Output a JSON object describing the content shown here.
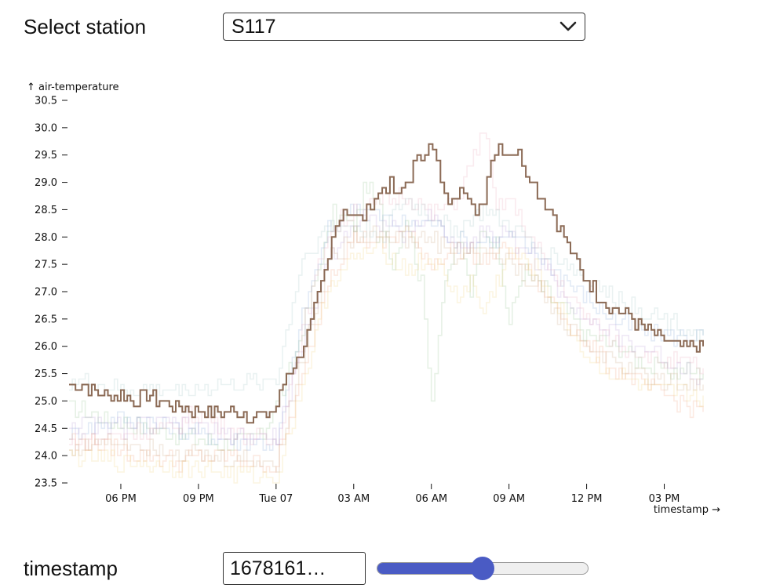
{
  "controls": {
    "station_label": "Select station",
    "station_value": "S117",
    "station_chevron_icon": "chevron-down-icon",
    "timestamp_label": "timestamp",
    "timestamp_value": "1678161…",
    "timestamp_slider_fraction": 0.5
  },
  "chart_data": {
    "type": "line",
    "title": "",
    "ylabel": "↑ air-temperature",
    "xlabel": "timestamp →",
    "ylim": [
      23.5,
      30.5
    ],
    "yticks": [
      23.5,
      24.0,
      24.5,
      25.0,
      25.5,
      26.0,
      26.5,
      27.0,
      27.5,
      28.0,
      28.5,
      29.0,
      29.5,
      30.0,
      30.5
    ],
    "xlim_hours": [
      16,
      40.5
    ],
    "xticks": [
      {
        "hour": 18,
        "label": "06 PM"
      },
      {
        "hour": 21,
        "label": "09 PM"
      },
      {
        "hour": 24,
        "label": "Tue 07"
      },
      {
        "hour": 27,
        "label": "03 AM"
      },
      {
        "hour": 30,
        "label": "06 AM"
      },
      {
        "hour": 33,
        "label": "09 AM"
      },
      {
        "hour": 36,
        "label": "12 PM"
      },
      {
        "hour": 39,
        "label": "03 PM"
      }
    ],
    "grid": false,
    "background_series_opacity": 0.22,
    "highlighted_series": {
      "name": "",
      "color": "#8b6a55",
      "points": [
        [
          16.0,
          25.3
        ],
        [
          16.5,
          25.3
        ],
        [
          17.0,
          25.2
        ],
        [
          17.5,
          25.1
        ],
        [
          18.0,
          25.1
        ],
        [
          18.5,
          25.0
        ],
        [
          19.0,
          25.1
        ],
        [
          19.5,
          25.0
        ],
        [
          20.0,
          24.9
        ],
        [
          20.5,
          24.85
        ],
        [
          21.0,
          24.8
        ],
        [
          21.5,
          24.8
        ],
        [
          22.0,
          24.8
        ],
        [
          22.5,
          24.8
        ],
        [
          23.0,
          24.75
        ],
        [
          23.5,
          24.7
        ],
        [
          24.0,
          24.9
        ],
        [
          24.4,
          25.5
        ],
        [
          24.8,
          25.7
        ],
        [
          25.2,
          26.2
        ],
        [
          25.6,
          26.9
        ],
        [
          26.0,
          27.6
        ],
        [
          26.3,
          28.3
        ],
        [
          26.6,
          28.5
        ],
        [
          26.9,
          28.4
        ],
        [
          27.2,
          28.3
        ],
        [
          27.5,
          28.5
        ],
        [
          27.8,
          28.7
        ],
        [
          28.1,
          28.9
        ],
        [
          28.4,
          29.0
        ],
        [
          28.7,
          28.7
        ],
        [
          29.0,
          29.0
        ],
        [
          29.3,
          29.3
        ],
        [
          29.6,
          29.5
        ],
        [
          29.9,
          29.8
        ],
        [
          30.2,
          29.3
        ],
        [
          30.5,
          28.7
        ],
        [
          30.8,
          28.6
        ],
        [
          31.1,
          29.0
        ],
        [
          31.4,
          28.8
        ],
        [
          31.7,
          28.3
        ],
        [
          32.0,
          28.7
        ],
        [
          32.3,
          29.5
        ],
        [
          32.6,
          29.7
        ],
        [
          32.9,
          29.5
        ],
        [
          33.2,
          29.6
        ],
        [
          33.5,
          29.4
        ],
        [
          33.8,
          29.1
        ],
        [
          34.1,
          28.8
        ],
        [
          34.4,
          28.6
        ],
        [
          34.7,
          28.4
        ],
        [
          35.0,
          28.1
        ],
        [
          35.5,
          27.6
        ],
        [
          36.0,
          27.2
        ],
        [
          36.5,
          26.9
        ],
        [
          37.0,
          26.7
        ],
        [
          37.5,
          26.6
        ],
        [
          38.0,
          26.4
        ],
        [
          38.5,
          26.2
        ],
        [
          39.0,
          26.1
        ],
        [
          39.5,
          26.0
        ],
        [
          40.5,
          26.0
        ]
      ]
    },
    "series": [
      {
        "color": "#8fbf8a",
        "points": [
          [
            16,
            24.9
          ],
          [
            18,
            24.6
          ],
          [
            20,
            24.4
          ],
          [
            22,
            24.2
          ],
          [
            23.5,
            24.4
          ],
          [
            24.5,
            25.5
          ],
          [
            25.5,
            27.2
          ],
          [
            26.2,
            28.4
          ],
          [
            27,
            28.2
          ],
          [
            27.5,
            29.0
          ],
          [
            28,
            28.5
          ],
          [
            28.5,
            27.5
          ],
          [
            29,
            28.4
          ],
          [
            29.6,
            27.1
          ],
          [
            30,
            25.1
          ],
          [
            30.4,
            26.8
          ],
          [
            31,
            28.0
          ],
          [
            31.5,
            27.0
          ],
          [
            32,
            28.3
          ],
          [
            32.5,
            27.8
          ],
          [
            33,
            26.4
          ],
          [
            33.5,
            27.4
          ],
          [
            34,
            27.2
          ],
          [
            35,
            26.7
          ],
          [
            36,
            26.2
          ],
          [
            37.5,
            25.9
          ],
          [
            38.5,
            25.6
          ],
          [
            40.5,
            25.5
          ]
        ]
      },
      {
        "color": "#7fa3d4",
        "points": [
          [
            16,
            24.4
          ],
          [
            18,
            24.7
          ],
          [
            20,
            24.5
          ],
          [
            22,
            24.3
          ],
          [
            24,
            24.2
          ],
          [
            25,
            26.6
          ],
          [
            26,
            28.1
          ],
          [
            27,
            28.6
          ],
          [
            28,
            28.4
          ],
          [
            29,
            28.2
          ],
          [
            30,
            28.3
          ],
          [
            31,
            27.9
          ],
          [
            32,
            27.9
          ],
          [
            33,
            28.0
          ],
          [
            34,
            27.7
          ],
          [
            35,
            27.3
          ],
          [
            36,
            26.9
          ],
          [
            37,
            26.5
          ],
          [
            38.5,
            26.2
          ],
          [
            40.5,
            26.2
          ]
        ]
      },
      {
        "color": "#f1a07a",
        "points": [
          [
            16,
            24.3
          ],
          [
            18,
            24.1
          ],
          [
            20,
            23.9
          ],
          [
            22,
            24.0
          ],
          [
            24,
            23.8
          ],
          [
            25,
            25.4
          ],
          [
            26,
            27.3
          ],
          [
            27,
            28.0
          ],
          [
            28,
            27.9
          ],
          [
            29,
            28.1
          ],
          [
            30,
            27.5
          ],
          [
            31,
            27.8
          ],
          [
            32,
            27.6
          ],
          [
            33,
            27.8
          ],
          [
            34,
            27.2
          ],
          [
            35,
            26.6
          ],
          [
            36,
            26.0
          ],
          [
            37,
            25.6
          ],
          [
            38.5,
            25.2
          ],
          [
            40.5,
            24.8
          ]
        ]
      },
      {
        "color": "#e8a4b8",
        "points": [
          [
            16,
            24.2
          ],
          [
            18,
            24.4
          ],
          [
            20,
            24.5
          ],
          [
            21,
            24.8
          ],
          [
            22,
            24.5
          ],
          [
            24,
            24.2
          ],
          [
            25,
            26.3
          ],
          [
            26,
            28.1
          ],
          [
            27,
            28.5
          ],
          [
            28,
            28.6
          ],
          [
            29,
            28.8
          ],
          [
            30,
            28.4
          ],
          [
            31,
            28.7
          ],
          [
            32,
            30.0
          ],
          [
            32.5,
            28.5
          ],
          [
            33,
            28.7
          ],
          [
            34,
            27.8
          ],
          [
            35,
            27.1
          ],
          [
            36,
            26.5
          ],
          [
            37,
            26.1
          ],
          [
            38.5,
            25.8
          ],
          [
            40.5,
            25.6
          ]
        ]
      },
      {
        "color": "#f1d27a",
        "points": [
          [
            16,
            24.0
          ],
          [
            18,
            23.9
          ],
          [
            20,
            23.8
          ],
          [
            22,
            23.7
          ],
          [
            24,
            23.6
          ],
          [
            25,
            25.3
          ],
          [
            26,
            27.1
          ],
          [
            27,
            27.6
          ],
          [
            28,
            27.8
          ],
          [
            29,
            27.4
          ],
          [
            30,
            27.6
          ],
          [
            31,
            26.9
          ],
          [
            31.5,
            27.2
          ],
          [
            32,
            26.6
          ],
          [
            33,
            27.7
          ],
          [
            34,
            27.4
          ],
          [
            35,
            26.6
          ],
          [
            36,
            25.8
          ],
          [
            37,
            25.5
          ],
          [
            38.5,
            25.2
          ],
          [
            40.5,
            25.1
          ]
        ]
      },
      {
        "color": "#9fc5c4",
        "points": [
          [
            16,
            25.4
          ],
          [
            18,
            25.2
          ],
          [
            20,
            25.2
          ],
          [
            22,
            25.3
          ],
          [
            24,
            25.4
          ],
          [
            25,
            27.6
          ],
          [
            26,
            28.2
          ],
          [
            27,
            28.2
          ],
          [
            28,
            28.0
          ],
          [
            29,
            28.7
          ],
          [
            30,
            28.4
          ],
          [
            31,
            28.1
          ],
          [
            32,
            28.5
          ],
          [
            33,
            28.2
          ],
          [
            34,
            27.8
          ],
          [
            35,
            27.6
          ],
          [
            36,
            27.2
          ],
          [
            37,
            26.9
          ],
          [
            38.5,
            26.6
          ],
          [
            40.5,
            26.2
          ]
        ]
      },
      {
        "color": "#b79ad8",
        "points": [
          [
            16,
            24.6
          ],
          [
            18,
            24.5
          ],
          [
            20,
            24.6
          ],
          [
            22,
            24.4
          ],
          [
            24,
            24.3
          ],
          [
            25,
            26.0
          ],
          [
            26,
            27.6
          ],
          [
            27,
            28.3
          ],
          [
            28,
            28.3
          ],
          [
            29,
            28.0
          ],
          [
            30,
            28.4
          ],
          [
            31,
            27.8
          ],
          [
            32,
            28.1
          ],
          [
            33,
            28.0
          ],
          [
            34,
            27.6
          ],
          [
            35,
            27.0
          ],
          [
            36,
            26.5
          ],
          [
            37,
            26.2
          ],
          [
            38.5,
            25.9
          ],
          [
            40.5,
            25.4
          ]
        ]
      },
      {
        "color": "#c9a27e",
        "points": [
          [
            16,
            24.1
          ],
          [
            18,
            24.3
          ],
          [
            20,
            24.1
          ],
          [
            22,
            23.9
          ],
          [
            24,
            23.9
          ],
          [
            25,
            25.8
          ],
          [
            26,
            27.6
          ],
          [
            27,
            28.0
          ],
          [
            28,
            28.1
          ],
          [
            29,
            27.9
          ],
          [
            30,
            28.0
          ],
          [
            31,
            27.6
          ],
          [
            32,
            27.8
          ],
          [
            33,
            27.5
          ],
          [
            34,
            27.1
          ],
          [
            35,
            26.5
          ],
          [
            36,
            26.0
          ],
          [
            37,
            25.7
          ],
          [
            38.5,
            25.4
          ],
          [
            40.5,
            25.3
          ]
        ]
      }
    ]
  }
}
